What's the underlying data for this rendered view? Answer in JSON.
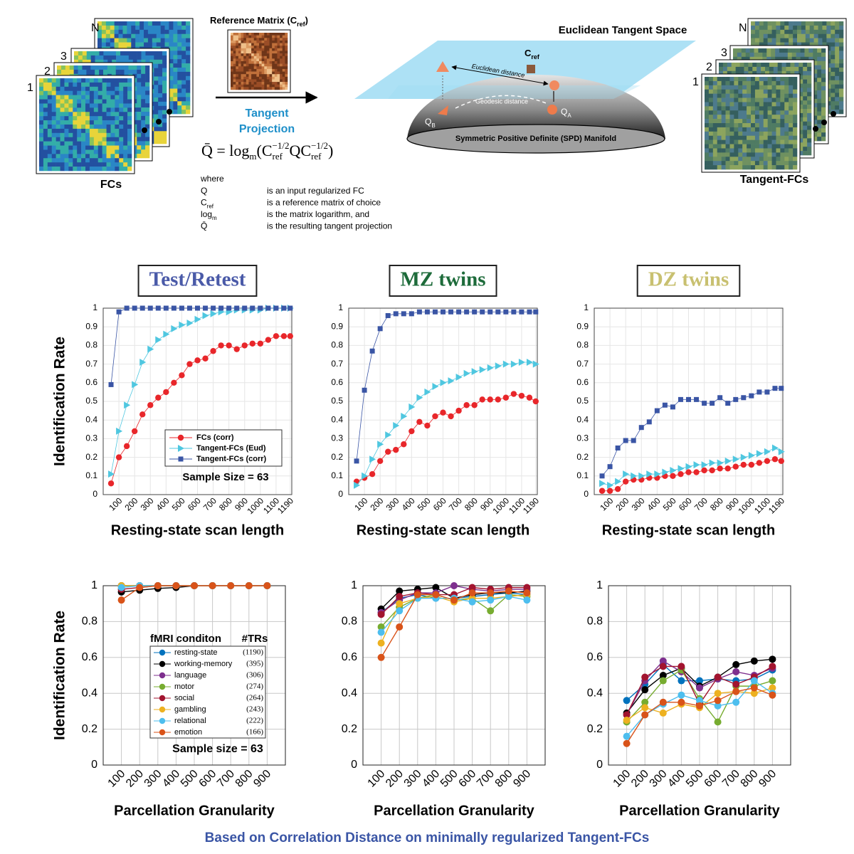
{
  "figure": {
    "fc_stack": {
      "labels": [
        "N",
        "3",
        "2",
        "1"
      ],
      "caption": "FCs"
    },
    "reference": {
      "text": "Reference Matrix (C",
      "sub": "ref",
      "close": ")"
    },
    "projection": {
      "line1": "Tangent",
      "line2": "Projection"
    },
    "formula": [
      {
        "text": "Q̄ = log",
        "pos": "base"
      },
      {
        "text": "m",
        "pos": "sub"
      },
      {
        "text": "(C",
        "pos": "base"
      },
      {
        "text": "ref",
        "pos": "sub"
      },
      {
        "text": "−1/2",
        "pos": "sup"
      },
      {
        "text": "QC",
        "pos": "base"
      },
      {
        "text": "ref",
        "pos": "sub"
      },
      {
        "text": "−1/2",
        "pos": "sup"
      },
      {
        "text": ")",
        "pos": "base"
      }
    ],
    "where": {
      "title": "where",
      "rows": [
        {
          "symbol": "Q",
          "text": "is an input regularized FC"
        },
        {
          "symbol": "C",
          "sub": "ref",
          "text": "is a reference matrix of choice"
        },
        {
          "symbol": "log",
          "sub": "m",
          "text": "is the matrix logarithm, and"
        },
        {
          "symbol": "Q̄",
          "text": "is the resulting tangent projection"
        }
      ]
    },
    "manifold": {
      "space": "Euclidean Tangent Space",
      "cref": "C",
      "cref_sub": "ref",
      "euclid": "Euclidean distance",
      "geodesic": "Geodesic distance",
      "qb": "Q",
      "qb_sub": "B",
      "qa": "Q",
      "qa_sub": "A",
      "base": "Symmetric Positive Definite (SPD) Manifold"
    },
    "tangent_stack": {
      "labels": [
        "N",
        "3",
        "2",
        "1"
      ],
      "caption": "Tangent-FCs"
    }
  },
  "chart_data": [
    {
      "type": "line",
      "title": "Test/Retest",
      "title_color": "#4a5aa8",
      "ylabel": "Identification Rate",
      "xlabel": "Resting-state scan length",
      "x": [
        50,
        100,
        150,
        200,
        250,
        300,
        350,
        400,
        450,
        500,
        550,
        600,
        650,
        700,
        750,
        800,
        850,
        900,
        950,
        1000,
        1050,
        1100,
        1150,
        1190
      ],
      "xlim": [
        0,
        1200
      ],
      "xticks": [
        100,
        200,
        300,
        400,
        500,
        600,
        700,
        800,
        900,
        1000,
        1100,
        1190
      ],
      "ylim": [
        0,
        1
      ],
      "yticks": [
        0,
        0.1,
        0.2,
        0.3,
        0.4,
        0.5,
        0.6,
        0.7,
        0.8,
        0.9,
        1
      ],
      "grid": true,
      "legend": "lower right",
      "annotation": "Sample Size = 63",
      "series": [
        {
          "name": "FCs (corr)",
          "color": "#e8262a",
          "marker": "circle",
          "values": [
            0.06,
            0.2,
            0.26,
            0.34,
            0.43,
            0.48,
            0.52,
            0.55,
            0.6,
            0.64,
            0.7,
            0.72,
            0.73,
            0.77,
            0.8,
            0.8,
            0.78,
            0.8,
            0.81,
            0.81,
            0.83,
            0.85,
            0.85,
            0.85
          ]
        },
        {
          "name": "Tangent-FCs (Eud)",
          "color": "#4fc7e0",
          "marker": "triangle",
          "values": [
            0.11,
            0.34,
            0.48,
            0.59,
            0.71,
            0.78,
            0.83,
            0.86,
            0.89,
            0.91,
            0.92,
            0.94,
            0.96,
            0.97,
            0.98,
            0.98,
            0.99,
            0.99,
            0.99,
            0.99,
            1,
            1,
            1,
            1
          ]
        },
        {
          "name": "Tangent-FCs (corr)",
          "color": "#3a55a5",
          "marker": "square",
          "values": [
            0.59,
            0.98,
            1,
            1,
            1,
            1,
            1,
            1,
            1,
            1,
            1,
            1,
            1,
            1,
            1,
            1,
            1,
            1,
            1,
            1,
            1,
            1,
            1,
            1
          ]
        }
      ]
    },
    {
      "type": "line",
      "title": "MZ twins",
      "title_color": "#1d6b3a",
      "xlabel": "Resting-state scan length",
      "x": [
        50,
        100,
        150,
        200,
        250,
        300,
        350,
        400,
        450,
        500,
        550,
        600,
        650,
        700,
        750,
        800,
        850,
        900,
        950,
        1000,
        1050,
        1100,
        1150,
        1190
      ],
      "xlim": [
        0,
        1200
      ],
      "xticks": [
        100,
        200,
        300,
        400,
        500,
        600,
        700,
        800,
        900,
        1000,
        1100,
        1190
      ],
      "ylim": [
        0,
        1
      ],
      "yticks": [
        0,
        0.1,
        0.2,
        0.3,
        0.4,
        0.5,
        0.6,
        0.7,
        0.8,
        0.9,
        1
      ],
      "grid": true,
      "series": [
        {
          "color": "#e8262a",
          "marker": "circle",
          "values": [
            0.07,
            0.09,
            0.11,
            0.18,
            0.23,
            0.24,
            0.27,
            0.34,
            0.39,
            0.37,
            0.42,
            0.44,
            0.42,
            0.45,
            0.48,
            0.48,
            0.51,
            0.51,
            0.51,
            0.52,
            0.54,
            0.53,
            0.52,
            0.5
          ]
        },
        {
          "color": "#4fc7e0",
          "marker": "triangle",
          "values": [
            0.05,
            0.1,
            0.19,
            0.27,
            0.32,
            0.37,
            0.42,
            0.47,
            0.52,
            0.55,
            0.58,
            0.6,
            0.61,
            0.63,
            0.65,
            0.66,
            0.67,
            0.68,
            0.69,
            0.7,
            0.7,
            0.71,
            0.71,
            0.7
          ]
        },
        {
          "color": "#3a55a5",
          "marker": "square",
          "values": [
            0.18,
            0.56,
            0.77,
            0.89,
            0.96,
            0.97,
            0.97,
            0.97,
            0.98,
            0.98,
            0.98,
            0.98,
            0.98,
            0.98,
            0.98,
            0.98,
            0.98,
            0.98,
            0.98,
            0.98,
            0.98,
            0.98,
            0.98,
            0.98
          ]
        }
      ]
    },
    {
      "type": "line",
      "title": "DZ twins",
      "title_color": "#c8c070",
      "xlabel": "Resting-state scan length",
      "x": [
        50,
        100,
        150,
        200,
        250,
        300,
        350,
        400,
        450,
        500,
        550,
        600,
        650,
        700,
        750,
        800,
        850,
        900,
        950,
        1000,
        1050,
        1100,
        1150,
        1190
      ],
      "xlim": [
        0,
        1200
      ],
      "xticks": [
        100,
        200,
        300,
        400,
        500,
        600,
        700,
        800,
        900,
        1000,
        1100,
        1190
      ],
      "ylim": [
        0,
        1
      ],
      "yticks": [
        0,
        0.1,
        0.2,
        0.3,
        0.4,
        0.5,
        0.6,
        0.7,
        0.8,
        0.9,
        1
      ],
      "grid": true,
      "series": [
        {
          "color": "#e8262a",
          "marker": "circle",
          "values": [
            0.02,
            0.02,
            0.03,
            0.07,
            0.08,
            0.08,
            0.09,
            0.09,
            0.1,
            0.1,
            0.11,
            0.12,
            0.12,
            0.13,
            0.13,
            0.14,
            0.14,
            0.15,
            0.16,
            0.16,
            0.17,
            0.18,
            0.19,
            0.18
          ]
        },
        {
          "color": "#4fc7e0",
          "marker": "triangle",
          "values": [
            0.06,
            0.05,
            0.07,
            0.11,
            0.1,
            0.1,
            0.11,
            0.11,
            0.12,
            0.13,
            0.14,
            0.15,
            0.16,
            0.16,
            0.17,
            0.17,
            0.18,
            0.19,
            0.2,
            0.21,
            0.22,
            0.23,
            0.25,
            0.23
          ]
        },
        {
          "color": "#3a55a5",
          "marker": "square",
          "values": [
            0.1,
            0.15,
            0.25,
            0.29,
            0.29,
            0.36,
            0.39,
            0.45,
            0.48,
            0.47,
            0.51,
            0.51,
            0.51,
            0.49,
            0.49,
            0.52,
            0.49,
            0.51,
            0.52,
            0.53,
            0.55,
            0.55,
            0.57,
            0.57
          ]
        }
      ]
    },
    {
      "type": "line",
      "ylabel": "Identification Rate",
      "xlabel": "Parcellation Granularity",
      "categories": [
        "100",
        "200",
        "300",
        "400",
        "500",
        "600",
        "700",
        "800",
        "900"
      ],
      "ylim": [
        0,
        1
      ],
      "yticks": [
        0,
        0.2,
        0.4,
        0.6,
        0.8,
        1
      ],
      "grid": true,
      "legend": "lower right",
      "legend_title": "fMRI conditon",
      "legend_count_title": "#TRs",
      "annotation": "Sample size = 63",
      "series": [
        {
          "name": "resting-state",
          "trs_label": "(1190)",
          "color": "#0072bd",
          "values": [
            1,
            1,
            1,
            1,
            1,
            1,
            1,
            1,
            1
          ]
        },
        {
          "name": "working-memory",
          "trs_label": "(395)",
          "color": "#000000",
          "values": [
            0.965,
            0.975,
            0.985,
            0.99,
            1,
            1,
            1,
            1,
            1
          ]
        },
        {
          "name": "language",
          "trs_label": "(306)",
          "color": "#7e2f8e",
          "values": [
            1,
            1,
            1,
            1,
            1,
            1,
            1,
            1,
            1
          ]
        },
        {
          "name": "motor",
          "trs_label": "(274)",
          "color": "#77ac30",
          "values": [
            1,
            1,
            1,
            1,
            1,
            1,
            1,
            1,
            1
          ]
        },
        {
          "name": "social",
          "trs_label": "(264)",
          "color": "#a2142f",
          "values": [
            0.98,
            0.99,
            1,
            1,
            1,
            1,
            1,
            1,
            1
          ]
        },
        {
          "name": "gambling",
          "trs_label": "(243)",
          "color": "#edb120",
          "values": [
            1,
            1,
            1,
            1,
            1,
            1,
            1,
            1,
            1
          ]
        },
        {
          "name": "relational",
          "trs_label": "(222)",
          "color": "#4dbeee",
          "values": [
            0.99,
            1,
            1,
            1,
            1,
            1,
            1,
            1,
            1
          ]
        },
        {
          "name": "emotion",
          "trs_label": "(166)",
          "color": "#d95319",
          "values": [
            0.92,
            0.99,
            1,
            1,
            1,
            1,
            1,
            1,
            1
          ]
        }
      ]
    },
    {
      "type": "line",
      "xlabel": "Parcellation Granularity",
      "categories": [
        "100",
        "200",
        "300",
        "400",
        "500",
        "600",
        "700",
        "800",
        "900"
      ],
      "ylim": [
        0,
        1
      ],
      "yticks": [
        0,
        0.2,
        0.4,
        0.6,
        0.8,
        1
      ],
      "grid": true,
      "series": [
        {
          "color": "#0072bd",
          "values": [
            0.85,
            0.93,
            0.95,
            0.93,
            0.93,
            0.94,
            0.95,
            0.96,
            0.95
          ]
        },
        {
          "color": "#000000",
          "values": [
            0.87,
            0.97,
            0.98,
            0.99,
            0.93,
            0.95,
            0.96,
            0.96,
            0.97
          ]
        },
        {
          "color": "#7e2f8e",
          "values": [
            0.85,
            0.92,
            0.96,
            0.96,
            1.0,
            0.98,
            0.97,
            0.98,
            0.98
          ]
        },
        {
          "color": "#77ac30",
          "values": [
            0.77,
            0.88,
            0.93,
            0.95,
            0.92,
            0.93,
            0.86,
            0.95,
            0.94
          ]
        },
        {
          "color": "#a2142f",
          "values": [
            0.84,
            0.94,
            0.96,
            0.95,
            0.95,
            0.99,
            0.98,
            0.99,
            0.99
          ]
        },
        {
          "color": "#edb120",
          "values": [
            0.68,
            0.9,
            0.93,
            0.94,
            0.91,
            0.93,
            0.93,
            0.94,
            0.95
          ]
        },
        {
          "color": "#4dbeee",
          "values": [
            0.74,
            0.86,
            0.93,
            0.93,
            0.93,
            0.91,
            0.92,
            0.94,
            0.92
          ]
        },
        {
          "color": "#d95319",
          "values": [
            0.6,
            0.77,
            0.95,
            0.95,
            0.92,
            0.96,
            0.96,
            0.97,
            0.96
          ]
        }
      ]
    },
    {
      "type": "line",
      "xlabel": "Parcellation Granularity",
      "categories": [
        "100",
        "200",
        "300",
        "400",
        "500",
        "600",
        "700",
        "800",
        "900"
      ],
      "ylim": [
        0,
        1
      ],
      "yticks": [
        0,
        0.2,
        0.4,
        0.6,
        0.8,
        1
      ],
      "grid": true,
      "series": [
        {
          "color": "#0072bd",
          "values": [
            0.36,
            0.45,
            0.56,
            0.47,
            0.47,
            0.48,
            0.47,
            0.48,
            0.53
          ]
        },
        {
          "color": "#000000",
          "values": [
            0.29,
            0.42,
            0.5,
            0.54,
            0.44,
            0.49,
            0.56,
            0.58,
            0.59
          ]
        },
        {
          "color": "#7e2f8e",
          "values": [
            0.28,
            0.47,
            0.58,
            0.52,
            0.43,
            0.48,
            0.52,
            0.5,
            0.54
          ]
        },
        {
          "color": "#77ac30",
          "values": [
            0.24,
            0.35,
            0.47,
            0.53,
            0.37,
            0.24,
            0.44,
            0.44,
            0.47
          ]
        },
        {
          "color": "#a2142f",
          "values": [
            0.28,
            0.49,
            0.55,
            0.55,
            0.34,
            0.49,
            0.45,
            0.49,
            0.55
          ]
        },
        {
          "color": "#edb120",
          "values": [
            0.25,
            0.32,
            0.29,
            0.34,
            0.32,
            0.4,
            0.41,
            0.4,
            0.43
          ]
        },
        {
          "color": "#4dbeee",
          "values": [
            0.16,
            0.28,
            0.34,
            0.39,
            0.36,
            0.33,
            0.35,
            0.47,
            0.4
          ]
        },
        {
          "color": "#d95319",
          "values": [
            0.12,
            0.28,
            0.35,
            0.35,
            0.33,
            0.36,
            0.41,
            0.43,
            0.39
          ]
        }
      ]
    }
  ],
  "caption": "Based on Correlation Distance on minimally regularized Tangent-FCs"
}
